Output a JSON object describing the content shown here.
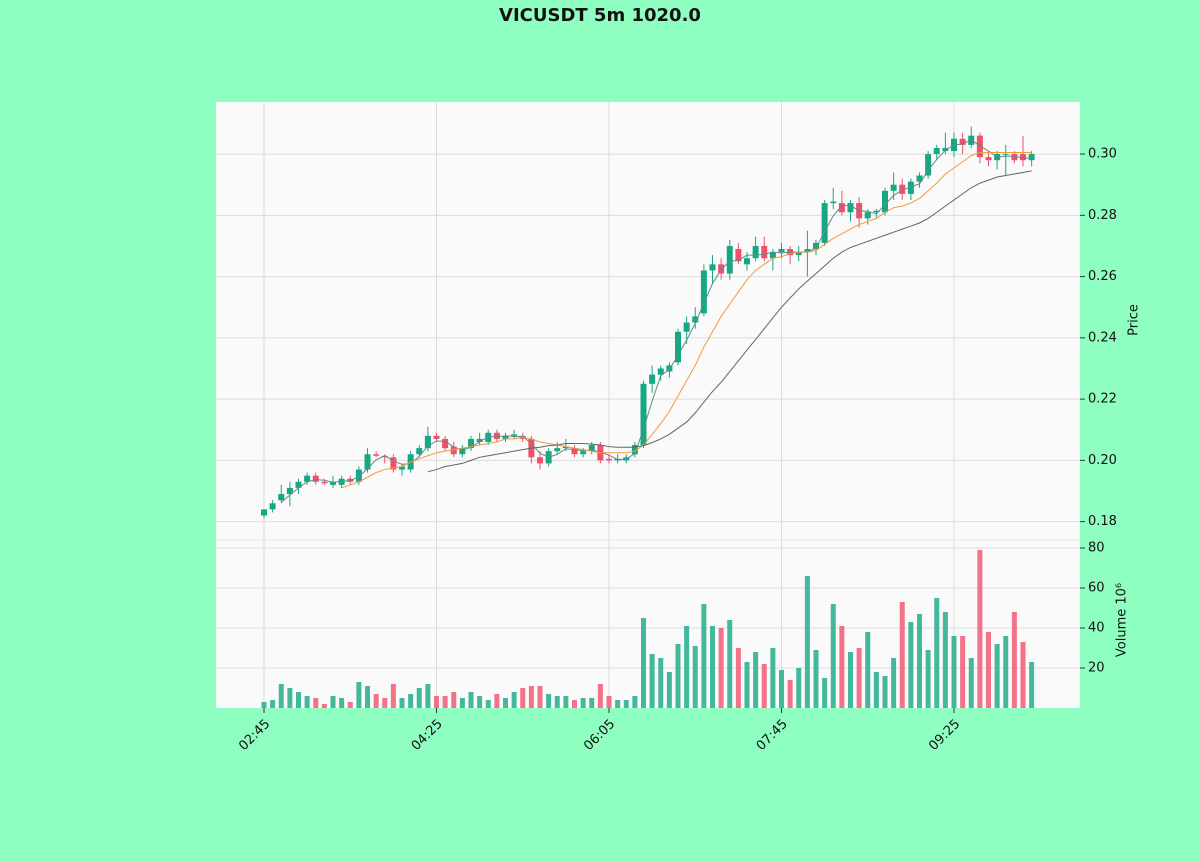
{
  "chart_data": {
    "type": "candlestick",
    "title": "VICUSDT 5m 1020.0",
    "categories": [
      "02:45",
      null,
      null,
      null,
      null,
      null,
      null,
      null,
      null,
      null,
      null,
      null,
      null,
      null,
      null,
      null,
      null,
      null,
      null,
      null,
      "04:25",
      null,
      null,
      null,
      null,
      null,
      null,
      null,
      null,
      null,
      null,
      null,
      null,
      null,
      null,
      null,
      null,
      null,
      null,
      null,
      "06:05",
      null,
      null,
      null,
      null,
      null,
      null,
      null,
      null,
      null,
      null,
      null,
      null,
      null,
      null,
      null,
      null,
      null,
      null,
      null,
      "07:45",
      null,
      null,
      null,
      null,
      null,
      null,
      null,
      null,
      null,
      null,
      null,
      null,
      null,
      null,
      null,
      null,
      null,
      null,
      null,
      "09:25",
      null,
      null,
      null,
      null,
      null,
      null,
      null,
      null,
      null
    ],
    "open": [
      0.182,
      0.184,
      0.187,
      0.189,
      0.191,
      0.193,
      0.195,
      0.193,
      0.192,
      0.192,
      0.194,
      0.193,
      0.197,
      0.202,
      0.2015,
      0.201,
      0.197,
      0.197,
      0.202,
      0.204,
      0.208,
      0.207,
      0.2045,
      0.202,
      0.204,
      0.206,
      0.206,
      0.209,
      0.207,
      0.208,
      0.208,
      0.207,
      0.201,
      0.199,
      0.203,
      0.204,
      0.204,
      0.202,
      0.203,
      0.205,
      0.2005,
      0.2,
      0.2,
      0.202,
      0.205,
      0.225,
      0.228,
      0.229,
      0.232,
      0.242,
      0.245,
      0.248,
      0.262,
      0.264,
      0.261,
      0.269,
      0.264,
      0.266,
      0.27,
      0.266,
      0.268,
      0.269,
      0.267,
      0.268,
      0.269,
      0.271,
      0.284,
      0.284,
      0.281,
      0.284,
      0.279,
      0.281,
      0.281,
      0.288,
      0.29,
      0.287,
      0.291,
      0.293,
      0.3,
      0.301,
      0.301,
      0.305,
      0.303,
      0.306,
      0.299,
      0.298,
      0.3,
      0.3,
      0.3,
      0.298
    ],
    "high": [
      0.184,
      0.187,
      0.192,
      0.193,
      0.194,
      0.196,
      0.196,
      0.194,
      0.195,
      0.195,
      0.195,
      0.198,
      0.204,
      0.203,
      0.202,
      0.202,
      0.199,
      0.203,
      0.205,
      0.211,
      0.209,
      0.208,
      0.206,
      0.205,
      0.208,
      0.209,
      0.21,
      0.21,
      0.209,
      0.21,
      0.209,
      0.208,
      0.203,
      0.204,
      0.206,
      0.207,
      0.205,
      0.204,
      0.206,
      0.206,
      0.202,
      0.202,
      0.202,
      0.206,
      0.226,
      0.231,
      0.231,
      0.232,
      0.243,
      0.247,
      0.25,
      0.264,
      0.267,
      0.266,
      0.272,
      0.271,
      0.268,
      0.273,
      0.273,
      0.269,
      0.271,
      0.27,
      0.27,
      0.275,
      0.272,
      0.285,
      0.289,
      0.288,
      0.285,
      0.286,
      0.282,
      0.282,
      0.289,
      0.294,
      0.292,
      0.292,
      0.294,
      0.301,
      0.303,
      0.307,
      0.307,
      0.307,
      0.309,
      0.307,
      0.301,
      0.301,
      0.303,
      0.301,
      0.306,
      0.301
    ],
    "low": [
      0.181,
      0.183,
      0.186,
      0.185,
      0.189,
      0.192,
      0.192,
      0.192,
      0.191,
      0.191,
      0.192,
      0.192,
      0.196,
      0.201,
      0.199,
      0.196,
      0.195,
      0.196,
      0.201,
      0.203,
      0.206,
      0.203,
      0.201,
      0.201,
      0.203,
      0.205,
      0.205,
      0.206,
      0.206,
      0.207,
      0.206,
      0.199,
      0.197,
      0.198,
      0.202,
      0.203,
      0.201,
      0.201,
      0.202,
      0.199,
      0.199,
      0.199,
      0.199,
      0.201,
      0.204,
      0.222,
      0.226,
      0.227,
      0.231,
      0.238,
      0.243,
      0.247,
      0.258,
      0.259,
      0.259,
      0.264,
      0.262,
      0.265,
      0.265,
      0.262,
      0.266,
      0.264,
      0.265,
      0.26,
      0.267,
      0.27,
      0.282,
      0.28,
      0.278,
      0.276,
      0.277,
      0.279,
      0.28,
      0.285,
      0.285,
      0.285,
      0.289,
      0.292,
      0.298,
      0.3,
      0.299,
      0.3,
      0.302,
      0.297,
      0.296,
      0.295,
      0.293,
      0.297,
      0.296,
      0.296
    ],
    "close": [
      0.184,
      0.186,
      0.189,
      0.191,
      0.193,
      0.195,
      0.193,
      0.1925,
      0.193,
      0.194,
      0.193,
      0.197,
      0.202,
      0.2015,
      0.201,
      0.197,
      0.198,
      0.202,
      0.204,
      0.208,
      0.207,
      0.204,
      0.202,
      0.204,
      0.207,
      0.207,
      0.209,
      0.207,
      0.208,
      0.2085,
      0.207,
      0.201,
      0.199,
      0.203,
      0.204,
      0.2045,
      0.202,
      0.203,
      0.205,
      0.2,
      0.2,
      0.2005,
      0.201,
      0.205,
      0.225,
      0.228,
      0.23,
      0.231,
      0.242,
      0.245,
      0.247,
      0.262,
      0.264,
      0.261,
      0.27,
      0.265,
      0.266,
      0.27,
      0.266,
      0.268,
      0.269,
      0.267,
      0.268,
      0.269,
      0.271,
      0.284,
      0.2845,
      0.281,
      0.284,
      0.279,
      0.281,
      0.2815,
      0.288,
      0.29,
      0.287,
      0.291,
      0.293,
      0.3,
      0.302,
      0.302,
      0.305,
      0.303,
      0.306,
      0.299,
      0.298,
      0.3,
      0.3,
      0.298,
      0.298,
      0.3
    ],
    "up_color": "#16a884",
    "down_color": "#f0506a",
    "ylabel": "Price",
    "ylim": [
      0.174,
      0.317
    ],
    "yticks": [
      0.18,
      {
        "value": 0.2,
        "label": "0.20"
      },
      0.22,
      0.24,
      0.26,
      0.28,
      {
        "value": 0.3,
        "label": "0.30"
      }
    ],
    "grid": true,
    "moving_averages": [
      {
        "color": "#5f8a8b",
        "values": [
          null,
          null,
          0.1863,
          0.1887,
          0.191,
          0.193,
          0.1937,
          0.1935,
          0.1928,
          0.1932,
          0.1933,
          0.1947,
          0.1973,
          0.2002,
          0.2015,
          0.1998,
          0.1987,
          0.199,
          0.2013,
          0.2047,
          0.2063,
          0.2063,
          0.2043,
          0.2033,
          0.2043,
          0.206,
          0.2077,
          0.2077,
          0.208,
          0.2078,
          0.2078,
          0.2055,
          0.2023,
          0.201,
          0.202,
          0.2038,
          0.2035,
          0.2032,
          0.2033,
          0.2027,
          0.2017,
          0.2002,
          0.2005,
          0.2022,
          0.2103,
          0.2193,
          0.2277,
          0.2297,
          0.2343,
          0.2393,
          0.2447,
          0.2513,
          0.2577,
          0.2623,
          0.265,
          0.2653,
          0.267,
          0.267,
          0.2673,
          0.268,
          0.2677,
          0.268,
          0.268,
          0.268,
          0.2693,
          0.2747,
          0.2798,
          0.2832,
          0.2832,
          0.2815,
          0.2813,
          0.2805,
          0.2835,
          0.2865,
          0.2883,
          0.2893,
          0.2903,
          0.2947,
          0.2983,
          0.3013,
          0.303,
          0.3033,
          0.3047,
          0.3027,
          0.301,
          0.299,
          0.2993,
          0.2993,
          0.2987,
          0.2987
        ]
      },
      {
        "color": "#f39a3c",
        "values": [
          null,
          null,
          null,
          null,
          null,
          null,
          null,
          null,
          null,
          0.191,
          0.192,
          0.193,
          0.1945,
          0.196,
          0.197,
          0.1975,
          0.198,
          0.1995,
          0.2005,
          0.2015,
          0.2025,
          0.203,
          0.2035,
          0.204,
          0.2045,
          0.205,
          0.2055,
          0.206,
          0.207,
          0.207,
          0.2075,
          0.207,
          0.206,
          0.2055,
          0.205,
          0.2045,
          0.204,
          0.2035,
          0.203,
          0.2025,
          0.2025,
          0.2025,
          0.2025,
          0.203,
          0.205,
          0.2085,
          0.212,
          0.216,
          0.221,
          0.226,
          0.231,
          0.237,
          0.242,
          0.247,
          0.251,
          0.255,
          0.259,
          0.262,
          0.264,
          0.266,
          0.2665,
          0.2675,
          0.268,
          0.268,
          0.2685,
          0.2705,
          0.2725,
          0.274,
          0.2755,
          0.277,
          0.278,
          0.279,
          0.281,
          0.2825,
          0.283,
          0.284,
          0.2855,
          0.288,
          0.2905,
          0.2935,
          0.2955,
          0.2975,
          0.2995,
          0.3005,
          0.3005,
          0.3005,
          0.3005,
          0.3005,
          0.3005,
          0.3005
        ]
      },
      {
        "color": "#5a6a5e",
        "values": [
          null,
          null,
          null,
          null,
          null,
          null,
          null,
          null,
          null,
          null,
          null,
          null,
          null,
          null,
          null,
          null,
          null,
          null,
          null,
          0.1963,
          0.197,
          0.198,
          0.1985,
          0.199,
          0.2,
          0.201,
          0.2015,
          0.202,
          0.2025,
          0.203,
          0.2035,
          0.204,
          0.2043,
          0.2048,
          0.205,
          0.2055,
          0.2055,
          0.2055,
          0.2053,
          0.205,
          0.2045,
          0.2043,
          0.2043,
          0.2043,
          0.2048,
          0.2058,
          0.207,
          0.2085,
          0.2105,
          0.2125,
          0.2155,
          0.219,
          0.2225,
          0.2255,
          0.229,
          0.2325,
          0.236,
          0.2395,
          0.243,
          0.2465,
          0.25,
          0.253,
          0.256,
          0.2585,
          0.261,
          0.2635,
          0.266,
          0.268,
          0.2695,
          0.2705,
          0.2715,
          0.2725,
          0.2735,
          0.2745,
          0.2755,
          0.2765,
          0.2775,
          0.279,
          0.281,
          0.283,
          0.285,
          0.287,
          0.289,
          0.2905,
          0.2915,
          0.2925,
          0.293,
          0.2935,
          0.294,
          0.2945
        ]
      }
    ],
    "volume": {
      "ylabel": "Volume 10⁶",
      "ylim": [
        0,
        84
      ],
      "yticks": [
        20,
        40,
        60,
        80
      ],
      "values": [
        3,
        4,
        12,
        10,
        8,
        6,
        5,
        2,
        6,
        5,
        3,
        13,
        11,
        7,
        5,
        12,
        5,
        7,
        10,
        12,
        6,
        6,
        8,
        5,
        8,
        6,
        4,
        7,
        5,
        8,
        10,
        11,
        11,
        7,
        6,
        6,
        4,
        5,
        5,
        12,
        6,
        4,
        4,
        6,
        45,
        27,
        25,
        18,
        32,
        41,
        31,
        52,
        41,
        40,
        44,
        30,
        23,
        28,
        22,
        30,
        19,
        14,
        20,
        66,
        29,
        15,
        52,
        41,
        28,
        30,
        38,
        18,
        16,
        25,
        53,
        43,
        47,
        29,
        55,
        48,
        36,
        36,
        25,
        79,
        38,
        32,
        36,
        48,
        33,
        23
      ]
    }
  }
}
